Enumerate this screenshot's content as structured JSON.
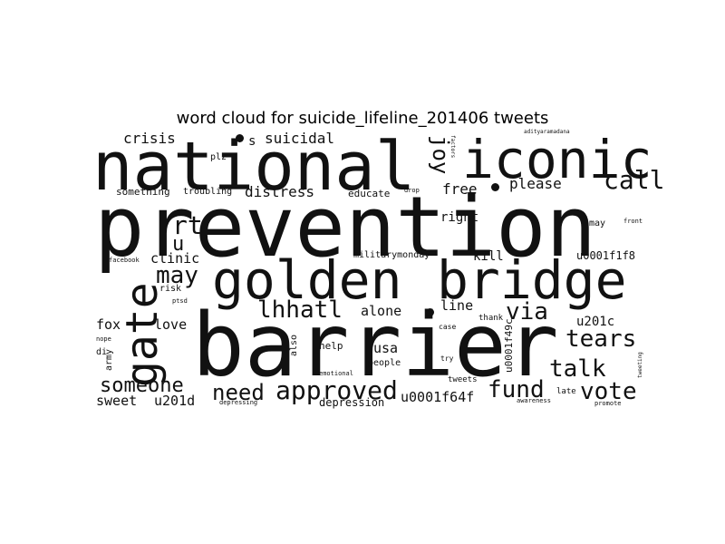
{
  "title": "word cloud for suicide_lifeline_201406 tweets",
  "words": {
    "prevention": "prevention",
    "barrier": "barrier",
    "national": "national",
    "iconic": "iconic",
    "golden": "golden",
    "bridge": "bridge",
    "gate": "gate",
    "joy": "joy",
    "call": "call",
    "approved": "approved",
    "need": "need",
    "someone": "someone",
    "tears": "tears",
    "talk": "talk",
    "vote": "vote",
    "fund": "fund",
    "via": "via",
    "may": "may",
    "lhhatl": "lhhatl",
    "rt": "rt",
    "u": "u",
    "crisis": "crisis",
    "suicidal": "suicidal",
    "s": "s",
    "distress": "distress",
    "please": "please",
    "free": "free",
    "right": "right",
    "kill": "kill",
    "u0001f1f8": "u0001f1f8",
    "u201c": "u201c",
    "u0001f64f": "u0001f64f",
    "u0001f49c": "u0001f49c",
    "sweet": "sweet",
    "u201d": "u201d",
    "depression": "depression",
    "usa": "usa",
    "people": "people",
    "help": "help",
    "alone": "alone",
    "line": "line",
    "fox": "fox",
    "love": "love",
    "clinic": "clinic",
    "something": "something",
    "troubling": "troubling",
    "educate": "educate",
    "militarymonday": "militarymonday",
    "plz": "plz",
    "also": "also",
    "army": "army",
    "di": "di",
    "risk": "risk",
    "thank": "thank",
    "case": "case",
    "try": "try",
    "tweets": "tweets",
    "late": "late",
    "promote": "promote",
    "awareness": "awareness",
    "depressing": "depressing",
    "emotional": "emotional",
    "facebook": "facebook",
    "nope": "nope",
    "ptsd": "ptsd",
    "drop": "drop",
    "adityaramadana": "adityaramadana",
    "tweeting": "tweeting",
    "front": "front",
    "factors": "factors",
    "may2": "may"
  },
  "colors": {
    "background": "#ffffff",
    "text": "#111111"
  }
}
